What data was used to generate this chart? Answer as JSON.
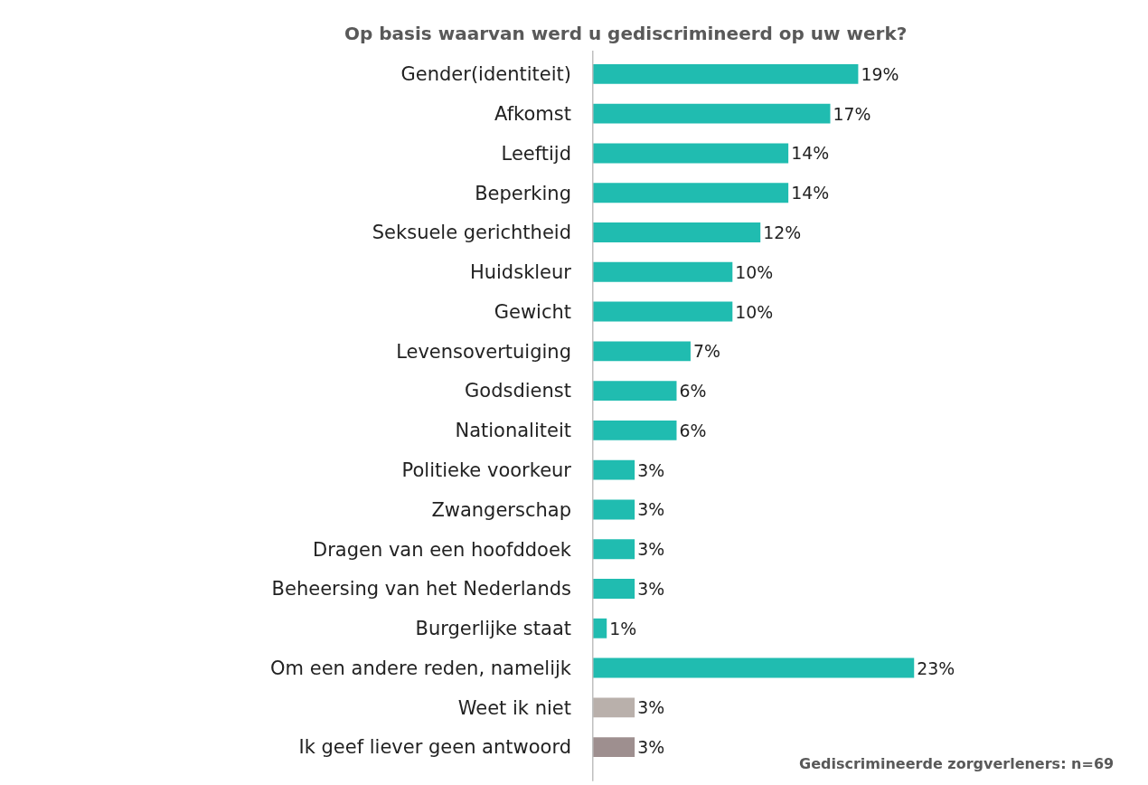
{
  "chart_data": {
    "type": "bar",
    "orientation": "horizontal",
    "title": "Op basis waarvan werd u gediscrimineerd op uw werk?",
    "categories": [
      "Gender(identiteit)",
      "Afkomst",
      "Leeftijd",
      "Beperking",
      "Seksuele gerichtheid",
      "Huidskleur",
      "Gewicht",
      "Levensovertuiging",
      "Godsdienst",
      "Nationaliteit",
      "Politieke voorkeur",
      "Zwangerschap",
      "Dragen van een hoofddoek",
      "Beheersing van het Nederlands",
      "Burgerlijke staat",
      "Om een andere reden, namelijk",
      "Weet ik niet",
      "Ik geef liever geen antwoord"
    ],
    "values": [
      19,
      17,
      14,
      14,
      12,
      10,
      10,
      7,
      6,
      6,
      3,
      3,
      3,
      3,
      1,
      23,
      3,
      3
    ],
    "value_labels": [
      "19%",
      "17%",
      "14%",
      "14%",
      "12%",
      "10%",
      "10%",
      "7%",
      "6%",
      "6%",
      "3%",
      "3%",
      "3%",
      "3%",
      "1%",
      "23%",
      "3%",
      "3%"
    ],
    "colors": [
      "#20bcb0",
      "#20bcb0",
      "#20bcb0",
      "#20bcb0",
      "#20bcb0",
      "#20bcb0",
      "#20bcb0",
      "#20bcb0",
      "#20bcb0",
      "#20bcb0",
      "#20bcb0",
      "#20bcb0",
      "#20bcb0",
      "#20bcb0",
      "#20bcb0",
      "#20bcb0",
      "#b9b0ab",
      "#9e8f8f"
    ],
    "tick_labels": "y",
    "grid": false,
    "legend": false,
    "annotations": [
      "Gediscrimineerde zorgverleners: n=69"
    ]
  }
}
